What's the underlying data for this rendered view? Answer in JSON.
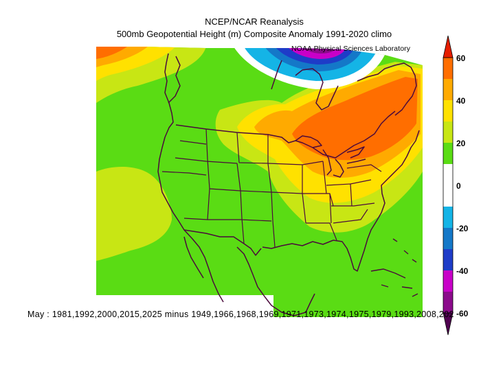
{
  "title_line1": "NCEP/NCAR Reanalysis",
  "title_line2": "500mb Geopotential Height (m) Composite Anomaly 1991-2020 climo",
  "credit": "NOAA Physical Sciences Laboratory",
  "footer": "May : 1981,1992,2000,2015,2025 minus 1949,1966,1968,1969,1971,1973,1974,1975,1979,1993,2008,202",
  "colors": {
    "c_60": "#8b0a8b",
    "c_40": "#c800c8",
    "c_20": "#1e3cc8",
    "c_10": "#1478c8",
    "c_n": "#14b4e6",
    "white": "#ffffff",
    "p_0": "#5adc14",
    "p_20": "#c8e614",
    "p_30": "#ffe100",
    "p_40": "#ffaa00",
    "p_50": "#ff6e00",
    "p_60": "#e61e00",
    "map_lines": "#4b0a3c"
  },
  "colorbar": {
    "labels": [
      "60",
      "40",
      "20",
      "0",
      "-20",
      "-40",
      "-60"
    ],
    "values": [
      60,
      40,
      20,
      0,
      -20,
      -40,
      -60
    ]
  }
}
